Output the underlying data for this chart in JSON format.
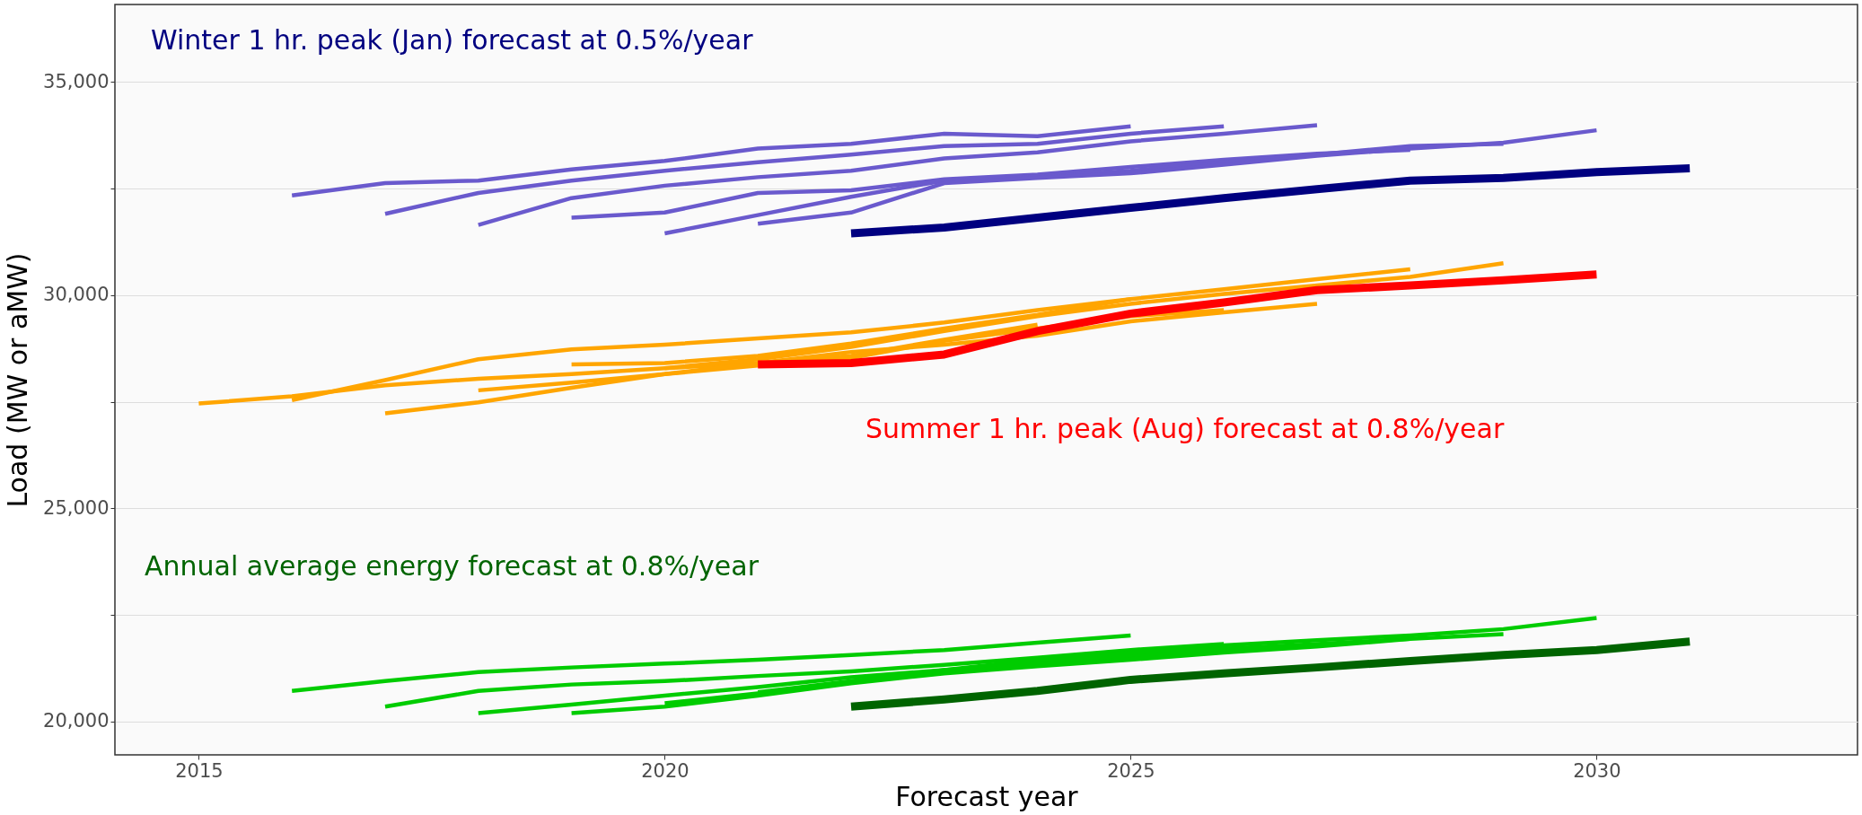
{
  "chart_data": {
    "type": "line",
    "xlabel": "Forecast year",
    "ylabel": "Load (MW or aMW)",
    "xlim": [
      2014.1,
      2032.8
    ],
    "ylim": [
      19220,
      36820
    ],
    "xticks": [
      2015,
      2020,
      2025,
      2030
    ],
    "yticks": [
      {
        "value": 20000,
        "label": "20,000"
      },
      {
        "value": 22500,
        "label": null
      },
      {
        "value": 25000,
        "label": "25,000"
      },
      {
        "value": 27500,
        "label": null
      },
      {
        "value": 30000,
        "label": "30,000"
      },
      {
        "value": 32500,
        "label": null
      },
      {
        "value": 35000,
        "label": "35,000"
      }
    ],
    "grid": "y",
    "marker": "none",
    "line_style": "solid",
    "series": [
      {
        "color": "#6a5acd",
        "x": [
          2016,
          2017,
          2018,
          2019,
          2020,
          2021,
          2022,
          2023,
          2024,
          2025
        ],
        "values": [
          32340,
          32630,
          32690,
          32950,
          33150,
          33440,
          33550,
          33790,
          33730,
          33960
        ]
      },
      {
        "color": "#6a5acd",
        "x": [
          2017,
          2018,
          2019,
          2020,
          2021,
          2022,
          2023,
          2024,
          2025,
          2026
        ],
        "values": [
          31910,
          32400,
          32690,
          32920,
          33120,
          33300,
          33500,
          33550,
          33790,
          33960
        ]
      },
      {
        "color": "#6a5acd",
        "x": [
          2018,
          2019,
          2020,
          2021,
          2022,
          2023,
          2024,
          2025,
          2026,
          2027
        ],
        "values": [
          31650,
          32280,
          32570,
          32770,
          32920,
          33210,
          33350,
          33610,
          33790,
          33990
        ]
      },
      {
        "color": "#6a5acd",
        "x": [
          2019,
          2020,
          2021,
          2022,
          2023,
          2024,
          2025,
          2026,
          2027,
          2028
        ],
        "values": [
          31820,
          31940,
          32400,
          32460,
          32720,
          32830,
          33010,
          33180,
          33320,
          33410
        ]
      },
      {
        "color": "#6a5acd",
        "x": [
          2020,
          2021,
          2022,
          2023,
          2024,
          2025,
          2026,
          2027,
          2028,
          2029
        ],
        "values": [
          31450,
          31880,
          32310,
          32690,
          32770,
          32920,
          33120,
          33300,
          33500,
          33550
        ]
      },
      {
        "color": "#6a5acd",
        "x": [
          2021,
          2022,
          2023,
          2024,
          2025,
          2026,
          2027,
          2028,
          2029,
          2030
        ],
        "values": [
          31680,
          31940,
          32630,
          32750,
          32860,
          33060,
          33270,
          33440,
          33580,
          33870
        ]
      },
      {
        "name": "Winter 1 hr. peak (Jan) forecast at 0.5%/year",
        "color": "#000080",
        "x": [
          2022,
          2023,
          2024,
          2025,
          2026,
          2027,
          2028,
          2029,
          2030,
          2031
        ],
        "values": [
          31450,
          31590,
          31820,
          32050,
          32280,
          32490,
          32690,
          32750,
          32890,
          32980
        ]
      },
      {
        "color": "#ffa500",
        "x": [
          2015,
          2016,
          2017,
          2018,
          2019,
          2020,
          2021,
          2022,
          2023,
          2024
        ],
        "values": [
          27460,
          27630,
          27890,
          28040,
          28150,
          28290,
          28410,
          28580,
          28960,
          29310
        ]
      },
      {
        "color": "#ffa500",
        "x": [
          2016,
          2017,
          2018,
          2019,
          2020,
          2021,
          2022,
          2023,
          2024,
          2025
        ],
        "values": [
          27540,
          28010,
          28500,
          28730,
          28840,
          28990,
          29130,
          29360,
          29650,
          29910
        ]
      },
      {
        "color": "#ffa500",
        "x": [
          2017,
          2018,
          2019,
          2020,
          2021,
          2022,
          2023,
          2024,
          2025,
          2026
        ],
        "values": [
          27230,
          27490,
          27830,
          28150,
          28350,
          28530,
          28930,
          29220,
          29510,
          29650
        ]
      },
      {
        "color": "#ffa500",
        "x": [
          2018,
          2019,
          2020,
          2021,
          2022,
          2023,
          2024,
          2025,
          2026,
          2027
        ],
        "values": [
          27770,
          27950,
          28150,
          28410,
          28670,
          28840,
          29050,
          29390,
          29600,
          29800
        ]
      },
      {
        "color": "#ffa500",
        "x": [
          2019,
          2020,
          2021,
          2022,
          2023,
          2024,
          2025,
          2026,
          2027,
          2028
        ],
        "values": [
          28380,
          28410,
          28580,
          28870,
          29220,
          29540,
          29910,
          30140,
          30380,
          30610
        ]
      },
      {
        "color": "#ffa500",
        "x": [
          2020,
          2021,
          2022,
          2023,
          2024,
          2025,
          2026,
          2027,
          2028,
          2029
        ],
        "values": [
          28290,
          28500,
          28790,
          29160,
          29510,
          29800,
          30030,
          30230,
          30430,
          30750
        ]
      },
      {
        "name": "Summer 1 hr. peak (Aug) forecast at 0.8%/year",
        "color": "#ff0000",
        "x": [
          2021,
          2022,
          2023,
          2024,
          2025,
          2026,
          2027,
          2028,
          2029,
          2030
        ],
        "values": [
          28380,
          28410,
          28610,
          29160,
          29570,
          29830,
          30120,
          30230,
          30350,
          30490
        ]
      },
      {
        "color": "#00cc00",
        "x": [
          2016,
          2017,
          2018,
          2019,
          2020,
          2021,
          2022,
          2023,
          2024,
          2025
        ],
        "values": [
          20720,
          20950,
          21160,
          21270,
          21360,
          21450,
          21560,
          21680,
          21850,
          22020
        ]
      },
      {
        "color": "#00cc00",
        "x": [
          2017,
          2018,
          2019,
          2020,
          2021,
          2022,
          2023,
          2024,
          2025,
          2026
        ],
        "values": [
          20350,
          20720,
          20870,
          20950,
          21070,
          21180,
          21330,
          21500,
          21680,
          21820
        ]
      },
      {
        "color": "#00cc00",
        "x": [
          2018,
          2019,
          2020,
          2021,
          2022,
          2023,
          2024,
          2025,
          2026,
          2027
        ],
        "values": [
          20200,
          20400,
          20610,
          20810,
          21040,
          21210,
          21360,
          21500,
          21650,
          21790
        ]
      },
      {
        "color": "#00cc00",
        "x": [
          2019,
          2020,
          2021,
          2022,
          2023,
          2024,
          2025,
          2026,
          2027,
          2028
        ],
        "values": [
          20200,
          20350,
          20610,
          20900,
          21130,
          21300,
          21450,
          21620,
          21760,
          21940
        ]
      },
      {
        "color": "#00cc00",
        "x": [
          2020,
          2021,
          2022,
          2023,
          2024,
          2025,
          2026,
          2027,
          2028,
          2029
        ],
        "values": [
          20430,
          20660,
          20920,
          21180,
          21390,
          21560,
          21710,
          21820,
          21940,
          22050
        ]
      },
      {
        "color": "#00cc00",
        "x": [
          2021,
          2022,
          2023,
          2024,
          2025,
          2026,
          2027,
          2028,
          2029,
          2030
        ],
        "values": [
          20690,
          20950,
          21210,
          21450,
          21620,
          21790,
          21910,
          22020,
          22170,
          22430
        ]
      },
      {
        "name": "Annual average energy forecast at 0.8%/year",
        "color": "#006400",
        "x": [
          2022,
          2023,
          2024,
          2025,
          2026,
          2027,
          2028,
          2029,
          2030,
          2031
        ],
        "values": [
          20350,
          20520,
          20720,
          20980,
          21130,
          21270,
          21420,
          21560,
          21680,
          21880
        ]
      }
    ]
  }
}
